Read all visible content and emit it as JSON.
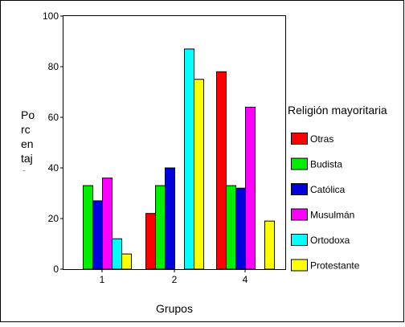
{
  "chart_data": {
    "type": "bar",
    "categories": [
      "1",
      "2",
      "4"
    ],
    "series": [
      {
        "name": "Otras",
        "color": "#ff0000",
        "values": [
          null,
          22,
          78
        ]
      },
      {
        "name": "Budista",
        "color": "#00ee00",
        "values": [
          33,
          33,
          33
        ]
      },
      {
        "name": "Católica",
        "color": "#0000dd",
        "values": [
          27,
          40,
          32
        ]
      },
      {
        "name": "Musulmán",
        "color": "#ff00ff",
        "values": [
          36,
          null,
          64
        ]
      },
      {
        "name": "Ortodoxa",
        "color": "#00ffff",
        "values": [
          12,
          87,
          null
        ]
      },
      {
        "name": "Protestante",
        "color": "#ffff00",
        "values": [
          6,
          75,
          19
        ]
      }
    ],
    "y_ticks": [
      "0",
      "20",
      "40",
      "60",
      "80",
      "100"
    ],
    "ylim": [
      0,
      100
    ],
    "xlabel": "Grupos",
    "ylabel_lines": [
      "Po",
      "rc",
      "en",
      "taj",
      "e"
    ],
    "legend_title": "Religión mayoritaria",
    "legend_position": "right",
    "grid": false
  }
}
